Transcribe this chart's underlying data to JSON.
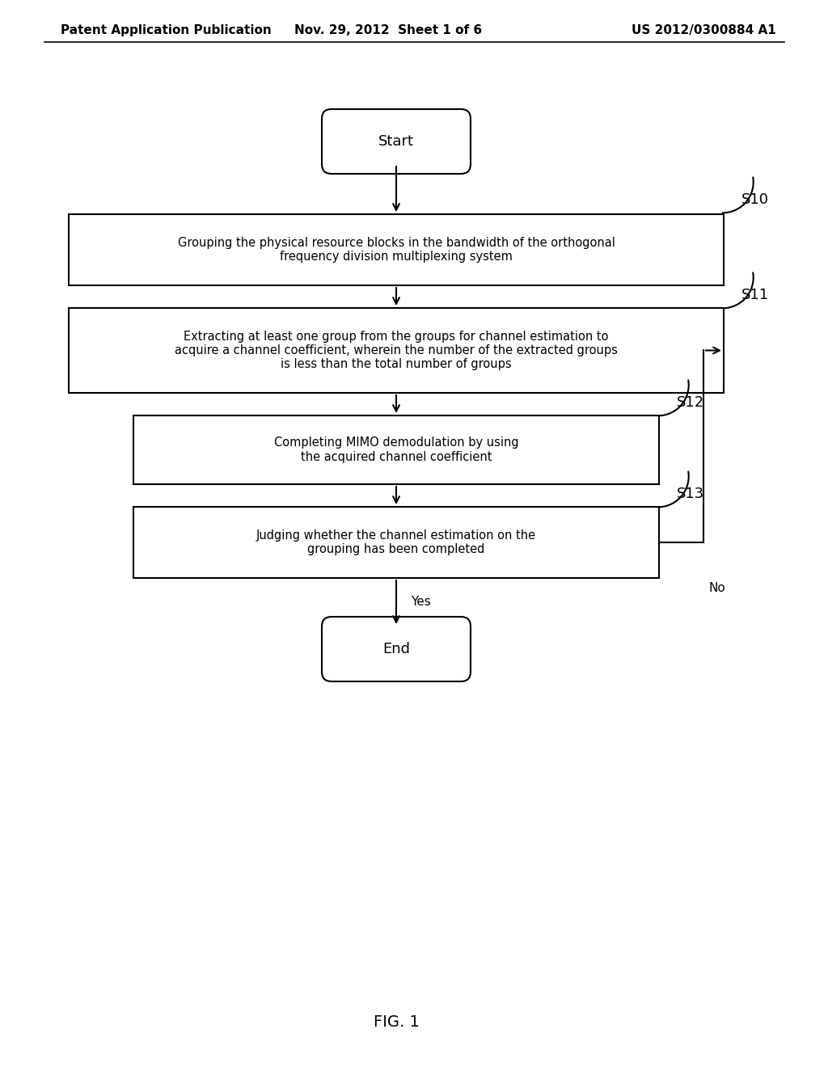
{
  "background_color": "#ffffff",
  "header_left": "Patent Application Publication",
  "header_mid": "Nov. 29, 2012  Sheet 1 of 6",
  "header_right": "US 2012/0300884 A1",
  "header_fontsize": 11,
  "footer_label": "FIG. 1",
  "footer_fontsize": 14,
  "start_label": "Start",
  "end_label": "End",
  "box_texts": [
    "Grouping the physical resource blocks in the bandwidth of the orthogonal\nfrequency division multiplexing system",
    "Extracting at least one group from the groups for channel estimation to\nacquire a channel coefficient, wherein the number of the extracted groups\nis less than the total number of groups",
    "Completing MIMO demodulation by using\nthe acquired channel coefficient",
    "Judging whether the channel estimation on the\ngrouping has been completed"
  ],
  "step_labels": [
    "S10",
    "S11",
    "S12",
    "S13"
  ],
  "yes_label": "Yes",
  "no_label": "No",
  "text_color": "#000000",
  "box_edge_color": "#000000",
  "arrow_color": "#000000",
  "line_width": 1.5,
  "fig_width": 10.24,
  "fig_height": 13.2,
  "dpi": 100
}
